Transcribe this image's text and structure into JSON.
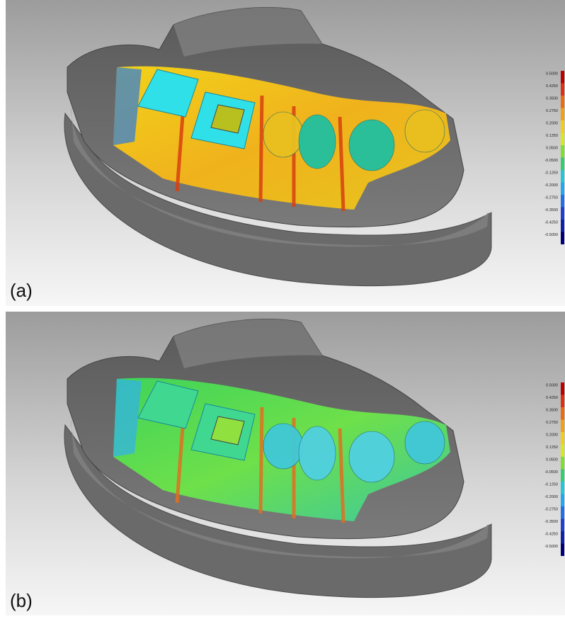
{
  "panels": [
    {
      "label": "(a)",
      "scale": [
        "0.5000",
        "0.4250",
        "0.3500",
        "0.2750",
        "0.2000",
        "0.1250",
        "0.0500",
        "-0.0500",
        "-0.1250",
        "-0.2000",
        "-0.2750",
        "-0.3500",
        "-0.4250",
        "-0.5000"
      ]
    },
    {
      "label": "(b)",
      "scale": [
        "0.5000",
        "0.4250",
        "0.3500",
        "0.2750",
        "0.2000",
        "0.1250",
        "0.0500",
        "-0.0500",
        "-0.1250",
        "-0.2000",
        "-0.2750",
        "-0.3500",
        "-0.4250",
        "-0.5000"
      ]
    }
  ]
}
